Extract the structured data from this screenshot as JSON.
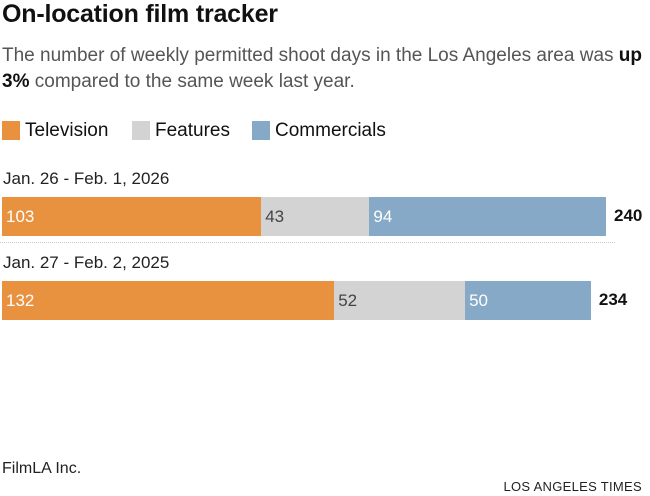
{
  "title": "On-location film tracker",
  "subtitle": {
    "part1": "The number of weekly permitted shoot days in the Los Angeles area was ",
    "emphasis": "up 3%",
    "part2": " compared to the same week last year."
  },
  "colors": {
    "television": "#e8913f",
    "features": "#d3d3d3",
    "commercials": "#85a9c6"
  },
  "legend": [
    {
      "label": "Television",
      "color": "#e8913f"
    },
    {
      "label": "Features",
      "color": "#d3d3d3"
    },
    {
      "label": "Commercials",
      "color": "#85a9c6"
    }
  ],
  "chart_data": {
    "type": "bar",
    "orientation": "horizontal",
    "stacked": true,
    "title": "On-location film tracker",
    "categories": [
      "Jan. 26 - Feb. 1, 2026",
      "Jan. 27 - Feb. 2, 2025"
    ],
    "series": [
      {
        "name": "Television",
        "values": [
          103,
          132
        ],
        "color": "#e8913f"
      },
      {
        "name": "Features",
        "values": [
          43,
          52
        ],
        "color": "#d3d3d3"
      },
      {
        "name": "Commercials",
        "values": [
          94,
          50
        ],
        "color": "#85a9c6"
      }
    ],
    "totals": [
      "240",
      "234"
    ],
    "xlim": [
      0,
      240
    ],
    "grid": false,
    "legend_position": "top-left"
  },
  "source": "FilmLA Inc.",
  "credit": "LOS ANGELES TIMES"
}
